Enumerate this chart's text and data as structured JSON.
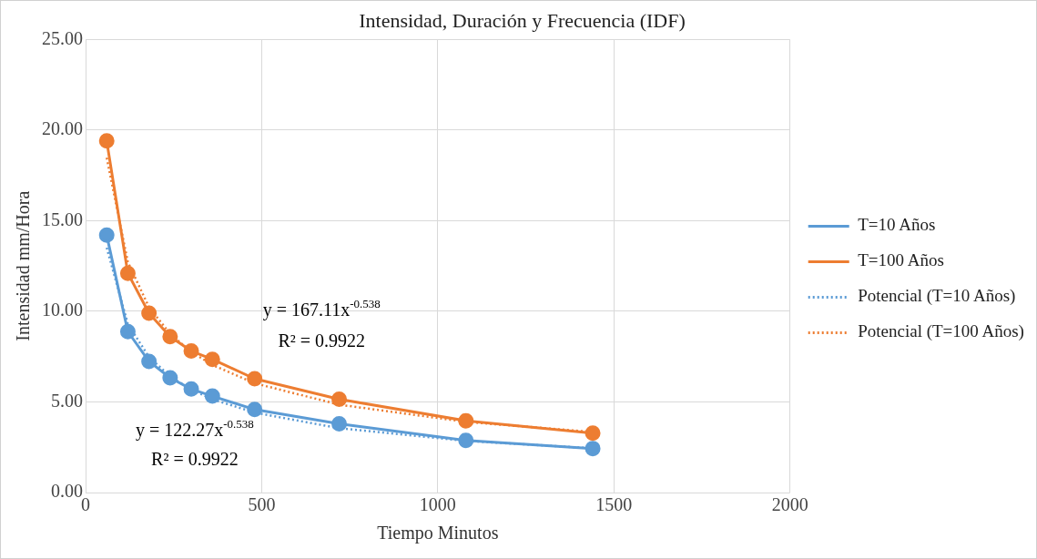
{
  "chart_data": {
    "type": "line",
    "title": "Intensidad, Duración y Frecuencia (IDF)",
    "xlabel": "Tiempo Minutos",
    "ylabel": "Intensidad mm/Hora",
    "x": [
      60,
      120,
      180,
      240,
      300,
      360,
      480,
      720,
      1080,
      1440
    ],
    "series": [
      {
        "name": "T=10 Años",
        "color": "#5b9bd5",
        "marker": "circle",
        "line_style": "solid",
        "values": [
          14.2,
          8.88,
          7.24,
          6.33,
          5.71,
          5.32,
          4.58,
          3.79,
          2.88,
          2.43
        ]
      },
      {
        "name": "T=100 Años",
        "color": "#ed7d31",
        "marker": "circle",
        "line_style": "solid",
        "values": [
          19.4,
          12.1,
          9.9,
          8.6,
          7.81,
          7.35,
          6.28,
          5.15,
          3.96,
          3.28
        ]
      },
      {
        "name": "Potencial (T=10 Años)",
        "color": "#5b9bd5",
        "marker": "none",
        "line_style": "dotted",
        "values": [
          13.51,
          9.3,
          7.48,
          6.41,
          5.68,
          5.15,
          4.41,
          3.55,
          2.85,
          2.44
        ]
      },
      {
        "name": "Potencial (T=100 Años)",
        "color": "#ed7d31",
        "marker": "none",
        "line_style": "dotted",
        "values": [
          18.47,
          12.72,
          10.23,
          8.76,
          7.77,
          7.04,
          6.03,
          4.85,
          3.9,
          3.34
        ]
      }
    ],
    "xlim": [
      0,
      2000
    ],
    "xticks": [
      0,
      500,
      1000,
      1500,
      2000
    ],
    "ylim": [
      0,
      25
    ],
    "yticks": [
      {
        "value": 0,
        "label": "0.00"
      },
      {
        "value": 5,
        "label": "5.00"
      },
      {
        "value": 10,
        "label": "10.00"
      },
      {
        "value": 15,
        "label": "15.00"
      },
      {
        "value": 20,
        "label": "20.00"
      },
      {
        "value": 25,
        "label": "25.00"
      }
    ],
    "annotations": [
      "y = 167.11x$^{-0.538}$",
      "R² = 0.9922",
      "y = 122.27x$^{-0.538}$",
      "R² = 0.9922"
    ],
    "grid": true,
    "legend": "right"
  }
}
